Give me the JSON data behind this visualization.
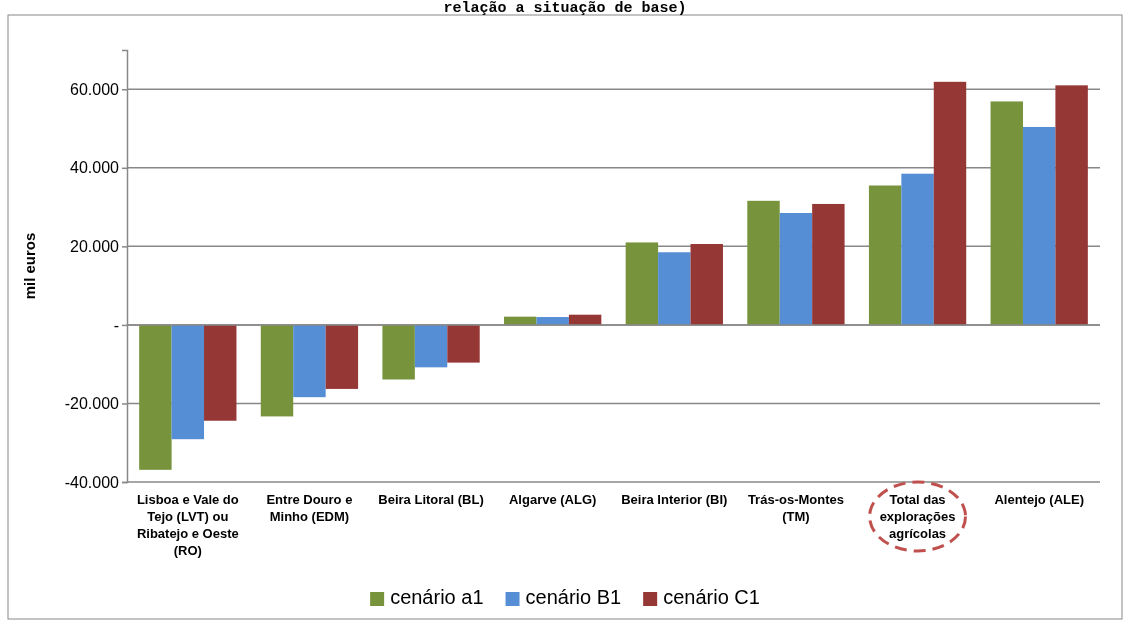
{
  "chart_data": {
    "type": "bar",
    "title": "relação a situação de base)",
    "ylabel": "mil euros",
    "categories": [
      "Lisboa e Vale do Tejo (LVT) ou Ribatejo e Oeste (RO)",
      "Entre Douro e Minho (EDM)",
      "Beira Litoral (BL)",
      "Algarve (ALG)",
      "Beira Interior (BI)",
      "Trás-os-Montes (TM)",
      "Total das explorações agrícolas",
      "Alentejo (ALE)"
    ],
    "series": [
      {
        "name": "cenário a1",
        "color": "#77933c",
        "values": [
          -36900,
          -23300,
          -13900,
          2100,
          21000,
          31600,
          35500,
          56900
        ]
      },
      {
        "name": "cenário B1",
        "color": "#558ed5",
        "values": [
          -29100,
          -18400,
          -10800,
          2000,
          18500,
          28500,
          38500,
          50400
        ]
      },
      {
        "name": "cenário C1",
        "color": "#953735",
        "values": [
          -24400,
          -16300,
          -9600,
          2600,
          20600,
          30800,
          61900,
          61000
        ]
      }
    ],
    "ylim": [
      -40000,
      70000
    ],
    "yticks": [
      {
        "value": -40000,
        "label": "-40.000"
      },
      {
        "value": -20000,
        "label": "-20.000"
      },
      {
        "value": 0,
        "label": "-"
      },
      {
        "value": 20000,
        "label": "20.000"
      },
      {
        "value": 40000,
        "label": "40.000"
      },
      {
        "value": 60000,
        "label": "60.000"
      }
    ],
    "grid": "y",
    "legend": "bottom"
  }
}
